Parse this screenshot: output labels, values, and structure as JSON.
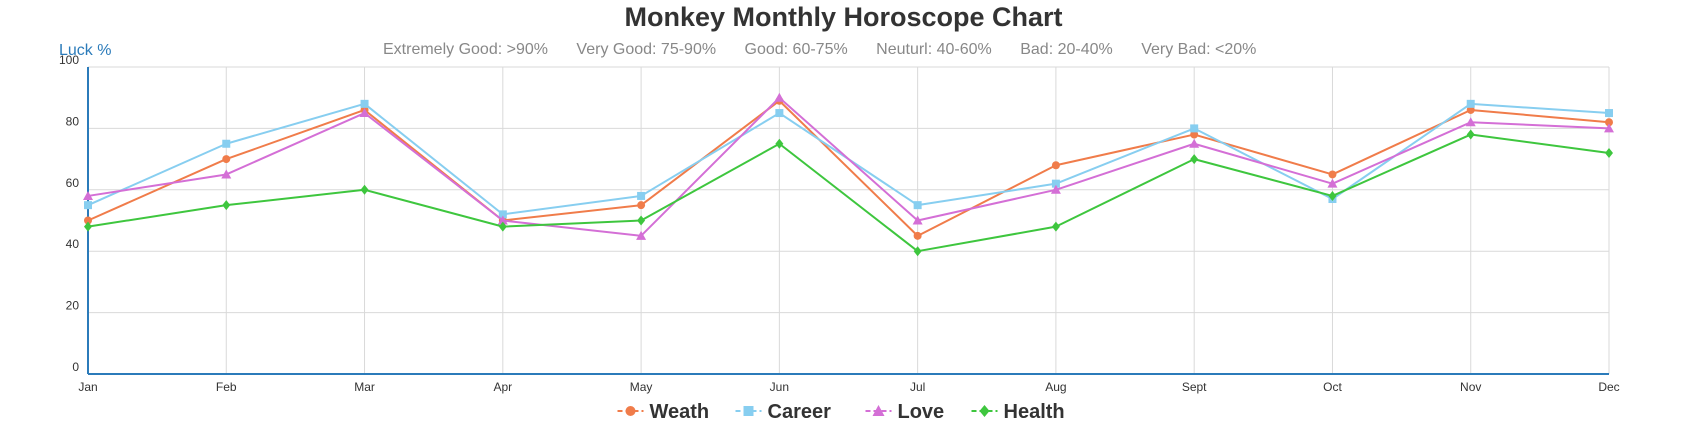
{
  "chart_data": {
    "type": "line",
    "title": "Monkey Monthly Horoscope Chart",
    "ylabel": "Luck %",
    "scale_legend": [
      "Extremely Good: >90%",
      "Very Good: 75-90%",
      "Good: 60-75%",
      "Neuturl: 40-60%",
      "Bad: 20-40%",
      "Very Bad: <20%"
    ],
    "categories": [
      "Jan",
      "Feb",
      "Mar",
      "Apr",
      "May",
      "Jun",
      "Jul",
      "Aug",
      "Sept",
      "Oct",
      "Nov",
      "Dec"
    ],
    "ylim": [
      0,
      100
    ],
    "yticks": [
      0,
      20,
      40,
      60,
      80,
      100
    ],
    "grid": true,
    "legend_position": "bottom",
    "series": [
      {
        "name": "Weath",
        "color": "#f07c4a",
        "marker": "circle",
        "values": [
          50,
          70,
          86,
          50,
          55,
          89,
          45,
          68,
          78,
          65,
          86,
          82
        ]
      },
      {
        "name": "Career",
        "color": "#87cef0",
        "marker": "square",
        "values": [
          55,
          75,
          88,
          52,
          58,
          85,
          55,
          62,
          80,
          57,
          88,
          85
        ]
      },
      {
        "name": "Love",
        "color": "#d46fd6",
        "marker": "triangle",
        "values": [
          58,
          65,
          85,
          50,
          45,
          90,
          50,
          60,
          75,
          62,
          82,
          80
        ]
      },
      {
        "name": "Health",
        "color": "#3ec63e",
        "marker": "diamond",
        "values": [
          48,
          55,
          60,
          48,
          50,
          75,
          40,
          48,
          70,
          58,
          78,
          72
        ]
      }
    ]
  }
}
